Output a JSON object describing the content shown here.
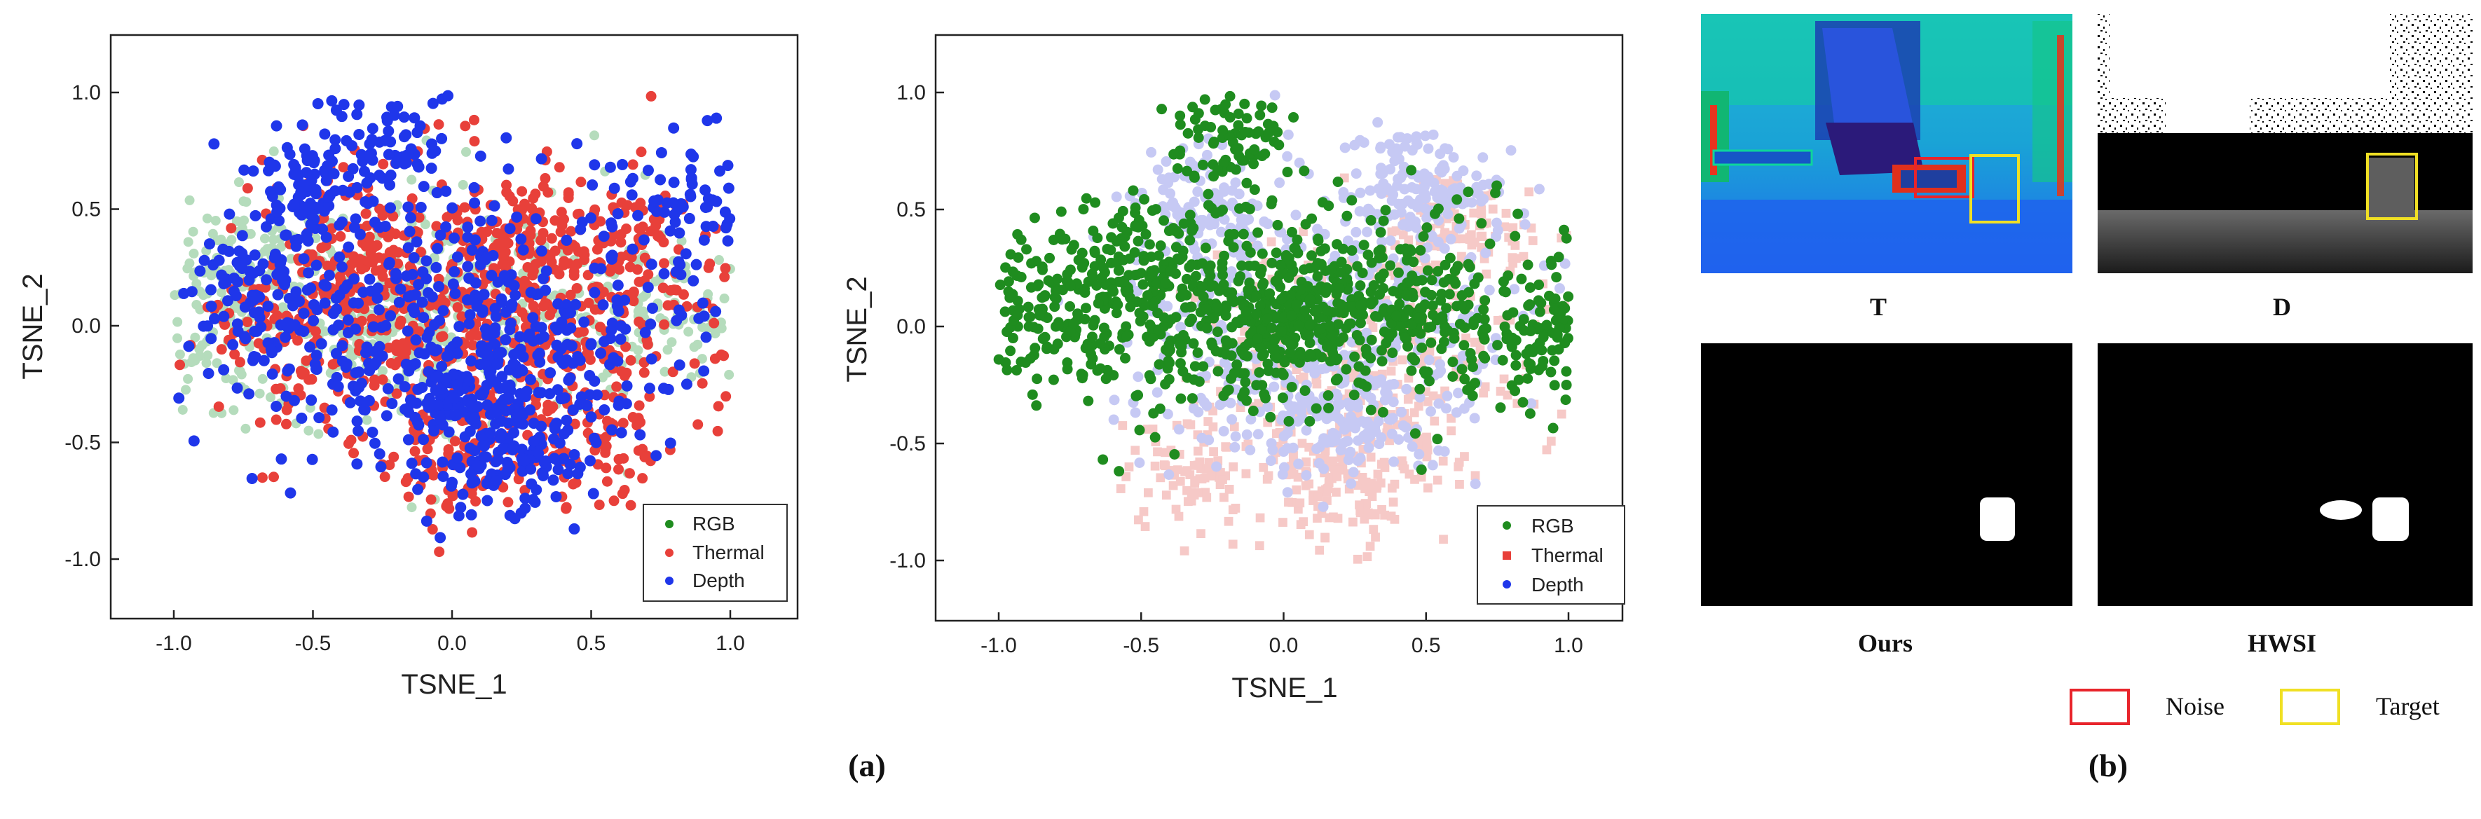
{
  "panel_a_label": "(a)",
  "panel_b_label": "(b)",
  "chart_data": [
    {
      "type": "scatter",
      "title": "",
      "xlabel": "TSNE_1",
      "ylabel": "TSNE_2",
      "xlim": [
        -1.25,
        1.25
      ],
      "ylim": [
        -1.25,
        1.25
      ],
      "xticks": [
        "-1.0",
        "-0.5",
        "0.0",
        "0.5",
        "1.0"
      ],
      "yticks": [
        "1.0",
        "0.5",
        "0.0",
        "-0.5",
        "-1.0"
      ],
      "grid": false,
      "legend_position": "bottom-right",
      "series": [
        {
          "name": "RGB",
          "color": "#1f8c1f",
          "display_color": "#b5dcbc",
          "marker": "circle",
          "faded": true,
          "sample_points": [
            [
              -0.85,
              0.3
            ],
            [
              -0.7,
              0.15
            ],
            [
              -0.9,
              -0.1
            ],
            [
              0.7,
              0.05
            ],
            [
              0.9,
              0.0
            ],
            [
              -0.2,
              0.0
            ],
            [
              0.0,
              0.05
            ]
          ]
        },
        {
          "name": "Thermal",
          "color": "#e8403a",
          "marker": "circle",
          "faded": false,
          "sample_points": [
            [
              -0.3,
              0.3
            ],
            [
              0.2,
              0.4
            ],
            [
              0.6,
              0.3
            ],
            [
              0.0,
              -0.6
            ],
            [
              0.5,
              -0.5
            ],
            [
              -0.6,
              0.0
            ]
          ]
        },
        {
          "name": "Depth",
          "color": "#1f36ea",
          "marker": "circle",
          "faded": false,
          "sample_points": [
            [
              -0.5,
              0.6
            ],
            [
              -0.7,
              0.2
            ],
            [
              0.1,
              -0.3
            ],
            [
              0.2,
              -0.6
            ],
            [
              0.85,
              0.5
            ],
            [
              -0.2,
              0.8
            ]
          ]
        }
      ]
    },
    {
      "type": "scatter",
      "title": "",
      "xlabel": "TSNE_1",
      "ylabel": "TSNE_2",
      "xlim": [
        -1.25,
        1.25
      ],
      "ylim": [
        -1.25,
        1.25
      ],
      "xticks": [
        "-1.0",
        "-0.5",
        "0.0",
        "0.5",
        "1.0"
      ],
      "yticks": [
        "1.0",
        "0.5",
        "0.0",
        "-0.5",
        "-1.0"
      ],
      "grid": false,
      "legend_position": "bottom-right",
      "series": [
        {
          "name": "RGB",
          "color": "#1f8c1f",
          "marker": "circle",
          "faded": false,
          "sample_points": [
            [
              -0.9,
              0.1
            ],
            [
              -0.5,
              0.3
            ],
            [
              0.0,
              0.0
            ],
            [
              0.5,
              0.1
            ],
            [
              0.95,
              0.0
            ],
            [
              -0.2,
              0.8
            ]
          ]
        },
        {
          "name": "Thermal",
          "color": "#e8403a",
          "display_color": "#f6c9c7",
          "marker": "square",
          "faded": true,
          "sample_points": [
            [
              0.2,
              -0.7
            ],
            [
              0.6,
              0.4
            ],
            [
              -0.3,
              -0.6
            ]
          ]
        },
        {
          "name": "Depth",
          "color": "#1f36ea",
          "display_color": "#c6c9f4",
          "marker": "circle",
          "faded": true,
          "sample_points": [
            [
              0.2,
              -0.4
            ],
            [
              0.5,
              0.6
            ],
            [
              -0.3,
              0.5
            ]
          ]
        }
      ]
    }
  ],
  "images": [
    {
      "label": "T",
      "description": "thermal"
    },
    {
      "label": "D",
      "description": "depth"
    },
    {
      "label": "Ours",
      "description": "mask"
    },
    {
      "label": "HWSI",
      "description": "mask"
    }
  ],
  "legend_b": [
    {
      "label": "Noise",
      "color": "#e8242b"
    },
    {
      "label": "Target",
      "color": "#f0e024"
    }
  ]
}
